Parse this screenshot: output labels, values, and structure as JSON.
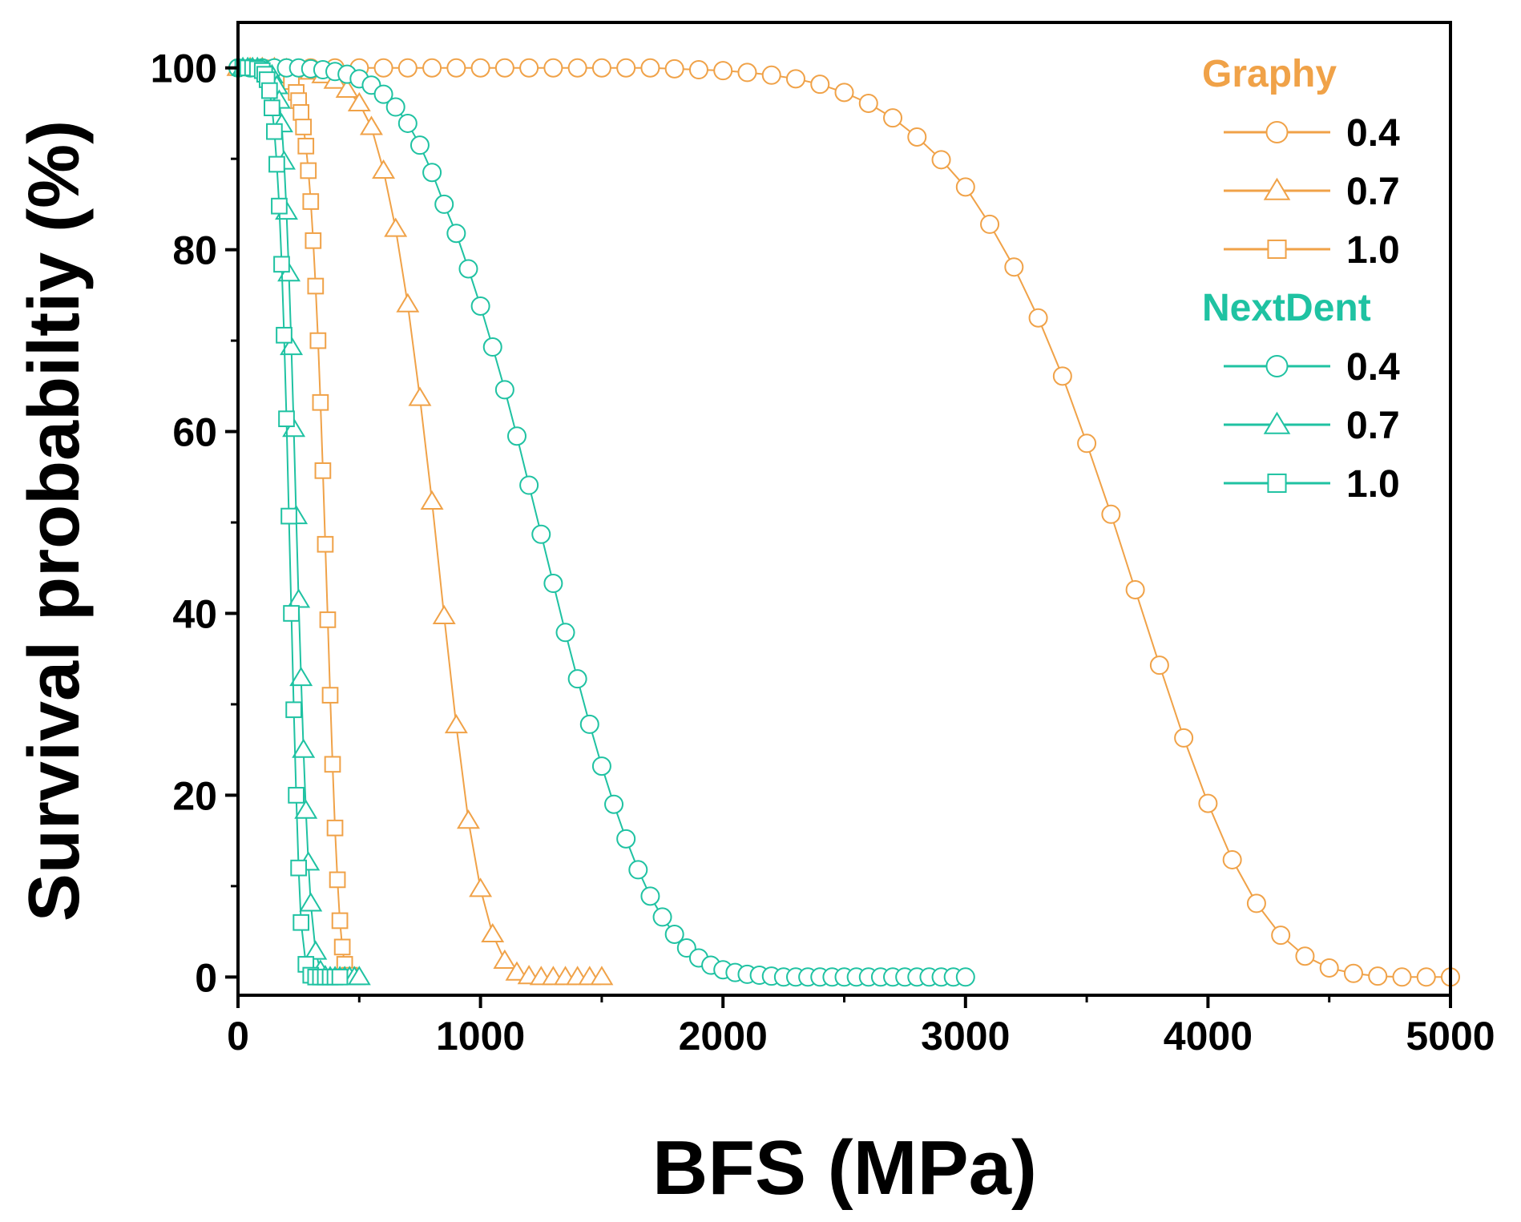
{
  "chart_data": {
    "type": "line",
    "xlabel": "BFS (MPa)",
    "ylabel": "Survival probabiltiy (%)",
    "xlim": [
      0,
      5000
    ],
    "ylim": [
      -2,
      105
    ],
    "x_ticks": [
      "0",
      "1000",
      "2000",
      "3000",
      "4000",
      "5000"
    ],
    "y_ticks": [
      "0",
      "20",
      "40",
      "60",
      "80",
      "100"
    ],
    "grid": false,
    "legend_position": "top-right",
    "legend_groups": [
      {
        "title": "Graphy",
        "color": "#F0A248",
        "entries": [
          "0.4",
          "0.7",
          "1.0"
        ]
      },
      {
        "title": "NextDent",
        "color": "#1FC2A2",
        "entries": [
          "0.4",
          "0.7",
          "1.0"
        ]
      }
    ],
    "series": [
      {
        "name": "0.4",
        "group": "Graphy",
        "marker": "circle",
        "color": "#F0A248",
        "x": [
          0,
          100,
          200,
          300,
          400,
          500,
          600,
          700,
          800,
          900,
          1000,
          1100,
          1200,
          1300,
          1400,
          1500,
          1600,
          1700,
          1800,
          1900,
          2000,
          2100,
          2200,
          2300,
          2400,
          2500,
          2600,
          2700,
          2800,
          2900,
          3000,
          3100,
          3200,
          3300,
          3400,
          3500,
          3600,
          3700,
          3800,
          3900,
          4000,
          4100,
          4200,
          4300,
          4400,
          4500,
          4600,
          4700,
          4800,
          4900,
          5000
        ],
        "y": [
          100,
          100,
          100,
          100,
          100,
          100,
          100,
          100,
          100,
          100,
          100,
          100,
          100,
          100,
          100,
          100,
          100,
          100,
          99.9,
          99.8,
          99.7,
          99.5,
          99.2,
          98.8,
          98.2,
          97.3,
          96.1,
          94.5,
          92.4,
          89.9,
          86.9,
          82.8,
          78.1,
          72.5,
          66.1,
          58.7,
          50.9,
          42.6,
          34.3,
          26.3,
          19.1,
          12.9,
          8.1,
          4.6,
          2.3,
          1.0,
          0.4,
          0.1,
          0,
          0,
          0
        ]
      },
      {
        "name": "0.7",
        "group": "Graphy",
        "marker": "triangle",
        "color": "#F0A248",
        "x": [
          0,
          50,
          100,
          150,
          200,
          250,
          300,
          350,
          400,
          450,
          500,
          550,
          600,
          650,
          700,
          750,
          800,
          850,
          900,
          950,
          1000,
          1050,
          1100,
          1150,
          1200,
          1250,
          1300,
          1350,
          1400,
          1450,
          1500
        ],
        "y": [
          100,
          100,
          100,
          100,
          99.9,
          99.8,
          99.6,
          99.2,
          98.6,
          97.6,
          96.1,
          93.5,
          88.7,
          82.3,
          74.0,
          63.7,
          52.3,
          39.7,
          27.7,
          17.2,
          9.7,
          4.7,
          1.8,
          0.5,
          0.1,
          0,
          0,
          0,
          0,
          0,
          0
        ]
      },
      {
        "name": "1.0",
        "group": "Graphy",
        "marker": "square",
        "color": "#F0A248",
        "x": [
          40,
          60,
          80,
          100,
          120,
          140,
          160,
          180,
          200,
          220,
          240,
          250,
          260,
          270,
          280,
          290,
          300,
          310,
          320,
          330,
          340,
          350,
          360,
          370,
          380,
          390,
          400,
          410,
          420,
          430,
          440,
          460
        ],
        "y": [
          100,
          100,
          100,
          100,
          100,
          99.9,
          99.8,
          99.6,
          99.2,
          98.5,
          97.3,
          96.4,
          95.1,
          93.5,
          91.4,
          88.7,
          85.3,
          81.0,
          76.0,
          70.0,
          63.2,
          55.7,
          47.6,
          39.3,
          31.0,
          23.4,
          16.4,
          10.7,
          6.2,
          3.3,
          1.4,
          0.2
        ]
      },
      {
        "name": "0.4",
        "group": "NextDent",
        "marker": "circle",
        "color": "#1FC2A2",
        "x": [
          0,
          50,
          100,
          150,
          200,
          250,
          300,
          350,
          400,
          450,
          500,
          550,
          600,
          650,
          700,
          750,
          800,
          850,
          900,
          950,
          1000,
          1050,
          1100,
          1150,
          1200,
          1250,
          1300,
          1350,
          1400,
          1450,
          1500,
          1550,
          1600,
          1650,
          1700,
          1750,
          1800,
          1850,
          1900,
          1950,
          2000,
          2050,
          2100,
          2150,
          2200,
          2250,
          2300,
          2350,
          2400,
          2450,
          2500,
          2550,
          2600,
          2650,
          2700,
          2750,
          2800,
          2850,
          2900,
          2950,
          3000
        ],
        "y": [
          100,
          100,
          100,
          100,
          100,
          100,
          99.9,
          99.8,
          99.6,
          99.3,
          98.8,
          98.1,
          97.1,
          95.7,
          93.9,
          91.5,
          88.5,
          85.0,
          81.8,
          77.9,
          73.8,
          69.3,
          64.6,
          59.5,
          54.1,
          48.7,
          43.3,
          37.9,
          32.8,
          27.8,
          23.2,
          19.0,
          15.2,
          11.8,
          8.9,
          6.6,
          4.7,
          3.2,
          2.1,
          1.3,
          0.8,
          0.5,
          0.3,
          0.2,
          0.1,
          0,
          0,
          0,
          0,
          0,
          0,
          0,
          0,
          0,
          0,
          0,
          0,
          0,
          0,
          0,
          0
        ]
      },
      {
        "name": "0.7",
        "group": "NextDent",
        "marker": "triangle",
        "color": "#1FC2A2",
        "x": [
          20,
          40,
          60,
          80,
          100,
          120,
          140,
          160,
          170,
          180,
          190,
          200,
          210,
          220,
          230,
          240,
          250,
          260,
          270,
          280,
          290,
          300,
          320,
          340,
          360,
          380,
          400,
          420,
          440,
          460,
          480,
          500
        ],
        "y": [
          100,
          100,
          100,
          100,
          99.9,
          99.7,
          99.2,
          98.0,
          96.4,
          93.8,
          89.7,
          84.2,
          77.4,
          69.3,
          60.3,
          50.7,
          41.5,
          32.9,
          25.0,
          18.3,
          12.6,
          8.1,
          2.8,
          0.7,
          0.1,
          0,
          0,
          0,
          0,
          0,
          0,
          0
        ]
      },
      {
        "name": "1.0",
        "group": "NextDent",
        "marker": "square",
        "color": "#1FC2A2",
        "x": [
          20,
          40,
          60,
          80,
          100,
          110,
          120,
          130,
          140,
          150,
          160,
          170,
          180,
          190,
          200,
          210,
          220,
          230,
          240,
          250,
          260,
          280,
          300,
          320,
          340,
          360,
          380,
          400,
          420
        ],
        "y": [
          100,
          100,
          100,
          99.9,
          99.7,
          99.3,
          98.7,
          97.5,
          95.6,
          93.0,
          89.4,
          84.8,
          78.4,
          70.6,
          61.4,
          50.7,
          40.0,
          29.4,
          20.0,
          12.0,
          6.0,
          1.4,
          0.2,
          0,
          0,
          0,
          0,
          0,
          0
        ]
      }
    ]
  }
}
